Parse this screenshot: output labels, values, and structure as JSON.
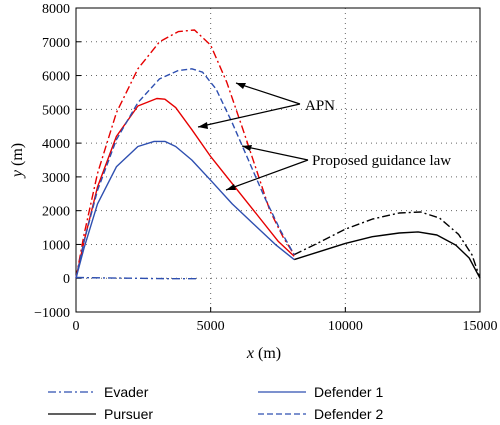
{
  "chart_data": {
    "type": "line",
    "xlabel_var": "x",
    "xlabel_unit": " (m)",
    "ylabel_var": "y",
    "ylabel_unit": " (m)",
    "xlim": [
      0,
      15000
    ],
    "ylim": [
      -1000,
      8000
    ],
    "xticks": [
      0,
      5000,
      10000,
      15000
    ],
    "yticks": [
      -1000,
      0,
      1000,
      2000,
      3000,
      4000,
      5000,
      6000,
      7000,
      8000
    ],
    "grid": "dotted",
    "legend_position": "bottom",
    "series": [
      {
        "key": "pursuer_apn",
        "name": "",
        "color": "#000000",
        "dash": "8,3,2,3",
        "x": [
          8100,
          9000,
          10000,
          11000,
          12000,
          12800,
          13500,
          14200,
          14700,
          15000
        ],
        "y": [
          700,
          1050,
          1450,
          1750,
          1930,
          1960,
          1780,
          1300,
          700,
          0
        ]
      },
      {
        "key": "pursuer_pgl",
        "name": "Pursuer",
        "color": "#000000",
        "dash": "",
        "x": [
          8100,
          9000,
          10000,
          11000,
          12000,
          12700,
          13400,
          14100,
          14600,
          15000
        ],
        "y": [
          550,
          780,
          1030,
          1230,
          1340,
          1370,
          1280,
          980,
          600,
          0
        ]
      },
      {
        "key": "defender2_apn",
        "name": "",
        "color": "#e60000",
        "dash": "8,3,2,3",
        "x": [
          0,
          300,
          800,
          1500,
          2300,
          3100,
          3800,
          4400,
          5000,
          5600,
          6200,
          6700,
          7200,
          7700,
          8100
        ],
        "y": [
          0,
          1300,
          3100,
          4900,
          6200,
          7000,
          7300,
          7350,
          6900,
          5800,
          4400,
          3200,
          2000,
          1200,
          700
        ]
      },
      {
        "key": "defender1_pgl_red",
        "name": "",
        "color": "#e60000",
        "dash": "",
        "x": [
          0,
          300,
          800,
          1500,
          2300,
          3000,
          3300,
          3700,
          4300,
          5000,
          5800,
          6700,
          7500,
          8100
        ],
        "y": [
          0,
          1100,
          2700,
          4200,
          5100,
          5320,
          5300,
          5050,
          4400,
          3600,
          2800,
          1900,
          1100,
          650
        ]
      },
      {
        "key": "defender1",
        "name": "Defender 1",
        "color": "#2e4fb0",
        "dash": "",
        "x": [
          0,
          300,
          800,
          1500,
          2300,
          2900,
          3300,
          3700,
          4300,
          5000,
          5800,
          6600,
          7400,
          8100
        ],
        "y": [
          0,
          900,
          2200,
          3300,
          3900,
          4050,
          4050,
          3900,
          3500,
          2900,
          2200,
          1600,
          1000,
          550
        ]
      },
      {
        "key": "defender2",
        "name": "Defender 2",
        "color": "#2e4fb0",
        "dash": "6,3",
        "x": [
          0,
          300,
          800,
          1500,
          2300,
          3100,
          3800,
          4300,
          4700,
          5200,
          5800,
          6400,
          7000,
          7600,
          8100
        ],
        "y": [
          0,
          1100,
          2600,
          4100,
          5200,
          5900,
          6150,
          6200,
          6100,
          5600,
          4600,
          3500,
          2400,
          1400,
          700
        ]
      },
      {
        "key": "evader",
        "name": "Evader",
        "color": "#2e4fb0",
        "dash": "8,3,2,3",
        "x": [
          0,
          1000,
          2000,
          3000,
          4000,
          4500
        ],
        "y": [
          20,
          10,
          0,
          -10,
          -15,
          -15
        ]
      }
    ],
    "annotations": [
      {
        "key": "apn",
        "text": "APN"
      },
      {
        "key": "pgl",
        "text": "Proposed guidance law"
      }
    ]
  }
}
